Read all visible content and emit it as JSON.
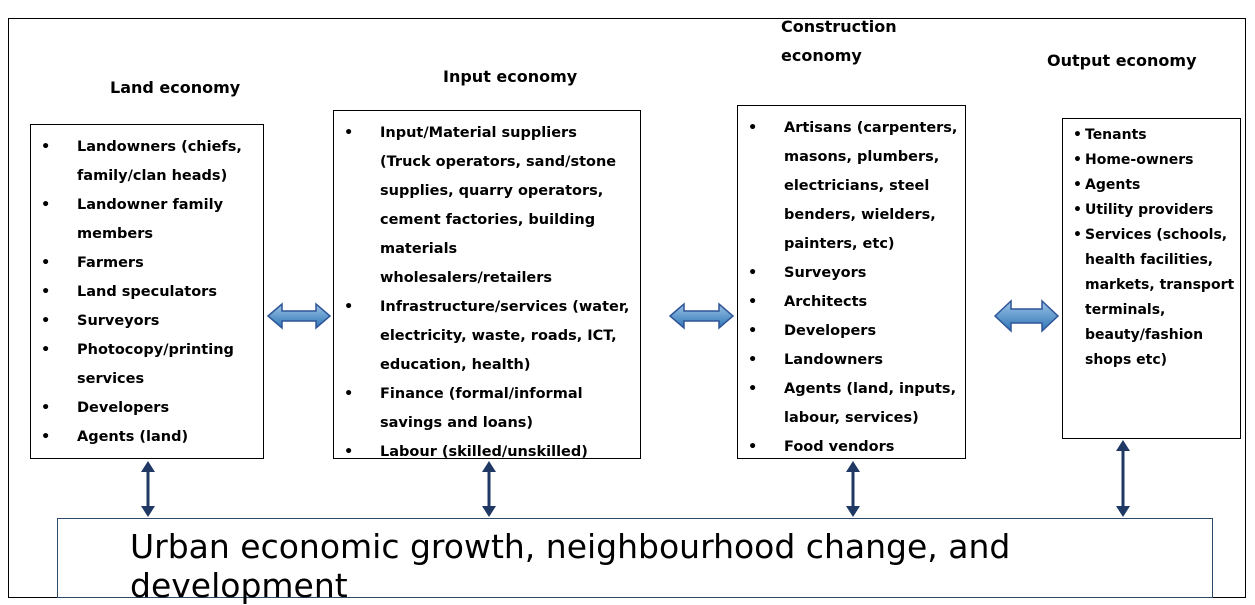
{
  "columns": [
    {
      "heading": "Land economy",
      "items": [
        "Landowners (chiefs, family/clan heads)",
        "Landowner family members",
        "Farmers",
        "Land speculators",
        "Surveyors",
        "Photocopy/printing services",
        "Developers",
        "Agents (land)"
      ]
    },
    {
      "heading": "Input economy",
      "items": [
        "Input/Material suppliers (Truck operators, sand/stone supplies, quarry operators, cement factories, building materials wholesalers/retailers",
        "Infrastructure/services (water, electricity, waste, roads, ICT, education, health)",
        "Finance (formal/informal savings and loans)",
        "Labour (skilled/unskilled)"
      ]
    },
    {
      "heading": "Construction economy",
      "items": [
        "Artisans (carpenters, masons, plumbers, electricians, steel benders, wielders, painters, etc)",
        "Surveyors",
        "Architects",
        "Developers",
        "Landowners",
        "Agents (land, inputs, labour, services)",
        "Food vendors"
      ]
    },
    {
      "heading": "Output economy",
      "items": [
        "Tenants",
        "Home-owners",
        "Agents",
        "Utility providers",
        "Services (schools, health facilities, markets, transport terminals, beauty/fashion shops etc)"
      ]
    }
  ],
  "footer": "Urban economic growth, neighbourhood change, and development"
}
